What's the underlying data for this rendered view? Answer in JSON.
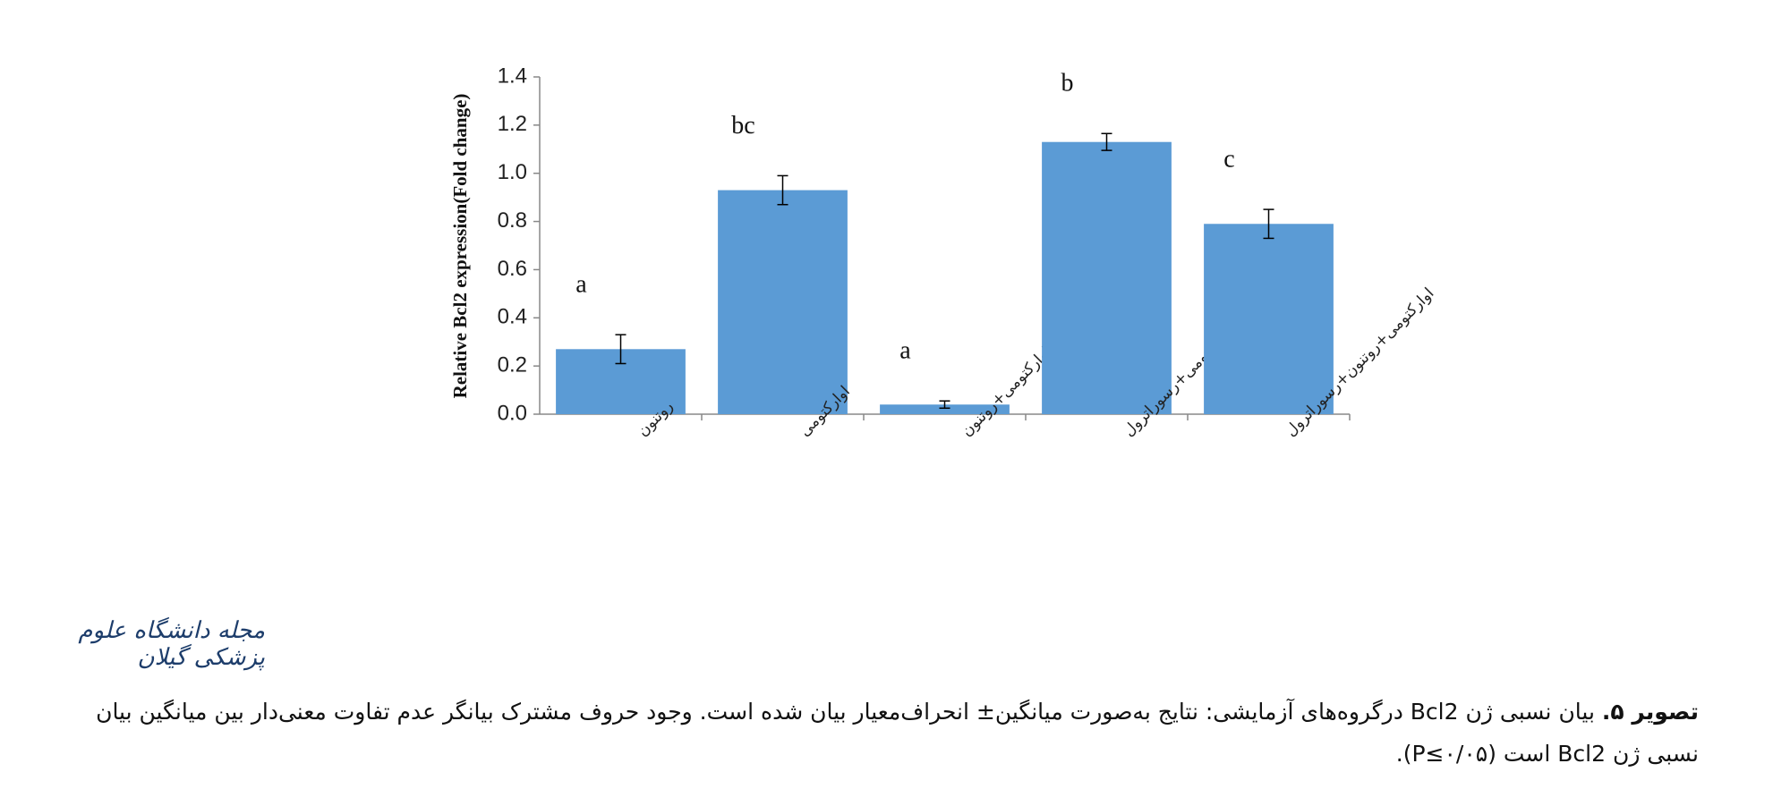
{
  "chart_data": {
    "type": "bar",
    "y_label": "Relative Bcl2 expression(Fold change)",
    "categories": [
      "روتنون",
      "اوارکتومی",
      "اوارکتومی+روتنون",
      "اوارکتومی+رسوراترول",
      "اوارکتومی+روتنون+رسوراترول"
    ],
    "values": [
      0.27,
      0.93,
      0.04,
      1.13,
      0.79
    ],
    "errors": [
      0.06,
      0.06,
      0.015,
      0.035,
      0.06
    ],
    "annotations": [
      "a",
      "bc",
      "a",
      "b",
      "c"
    ],
    "color": "#5b9bd5",
    "ylim": [
      0,
      1.4
    ],
    "yticks": [
      {
        "value": 0,
        "label": "0.0"
      },
      0.2,
      0.4,
      0.6,
      0.8,
      {
        "value": 1,
        "label": "1.0"
      },
      1.2,
      1.4
    ],
    "grid": false
  },
  "logo": "مجله دانشگاه علوم پزشکی گیلان",
  "caption": {
    "label": "تصویر ۵.",
    "text": "بیان نسبی ژن Bcl2 درگروه‌های آزمایشی: نتایج به‌صورت میانگین± انحراف‌معیار بیان شده است. وجود حروف مشترک بیانگر عدم تفاوت معنی‌دار بین میانگین بیان نسبی ژن Bcl2 است (P≤۰/۰۵)."
  }
}
